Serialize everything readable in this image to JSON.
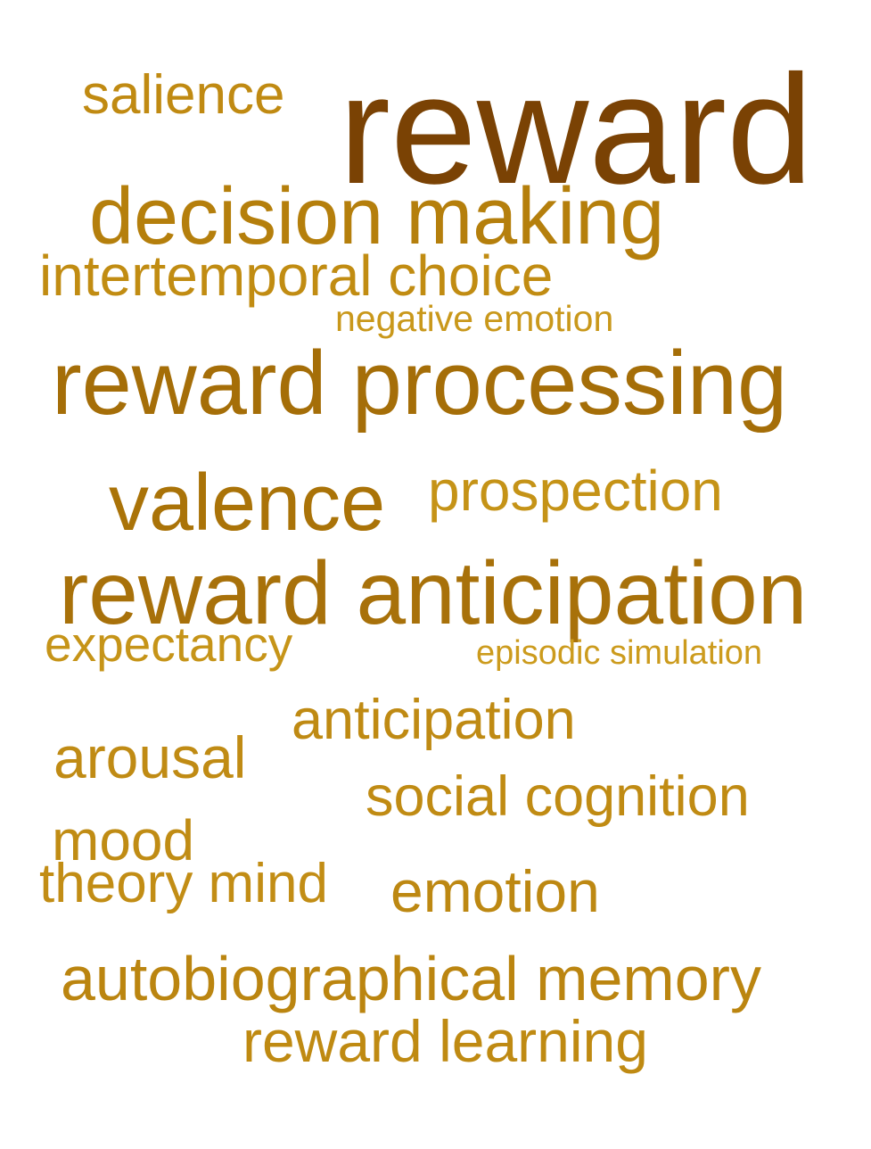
{
  "word_cloud": {
    "words": [
      {
        "key": "reward",
        "text": "reward",
        "color": "#7a4204"
      },
      {
        "key": "salience",
        "text": "salience",
        "color": "#c08a12"
      },
      {
        "key": "decision-making",
        "text": "decision making",
        "color": "#b57f0c"
      },
      {
        "key": "intertemporal-choice",
        "text": "intertemporal choice",
        "color": "#c18c12"
      },
      {
        "key": "negative-emotion",
        "text": "negative emotion",
        "color": "#c9981b"
      },
      {
        "key": "reward-processing",
        "text": "reward processing",
        "color": "#a56e08"
      },
      {
        "key": "valence",
        "text": "valence",
        "color": "#aa7308"
      },
      {
        "key": "prospection",
        "text": "prospection",
        "color": "#c59317"
      },
      {
        "key": "reward-anticipation",
        "text": "reward anticipation",
        "color": "#a8710a"
      },
      {
        "key": "expectancy",
        "text": "expectancy",
        "color": "#c69418"
      },
      {
        "key": "episodic-simulation",
        "text": "episodic simulation",
        "color": "#cc9b1d"
      },
      {
        "key": "anticipation",
        "text": "anticipation",
        "color": "#bf8a13"
      },
      {
        "key": "arousal",
        "text": "arousal",
        "color": "#c08b14"
      },
      {
        "key": "social-cognition",
        "text": "social cognition",
        "color": "#c08b13"
      },
      {
        "key": "mood",
        "text": "mood",
        "color": "#c08c14"
      },
      {
        "key": "theory-mind",
        "text": "theory mind",
        "color": "#c28d15"
      },
      {
        "key": "emotion",
        "text": "emotion",
        "color": "#bd8812"
      },
      {
        "key": "autobiographical-memory",
        "text": "autobiographical memory",
        "color": "#bb8510"
      },
      {
        "key": "reward-learning",
        "text": "reward learning",
        "color": "#bf8a12"
      }
    ]
  }
}
